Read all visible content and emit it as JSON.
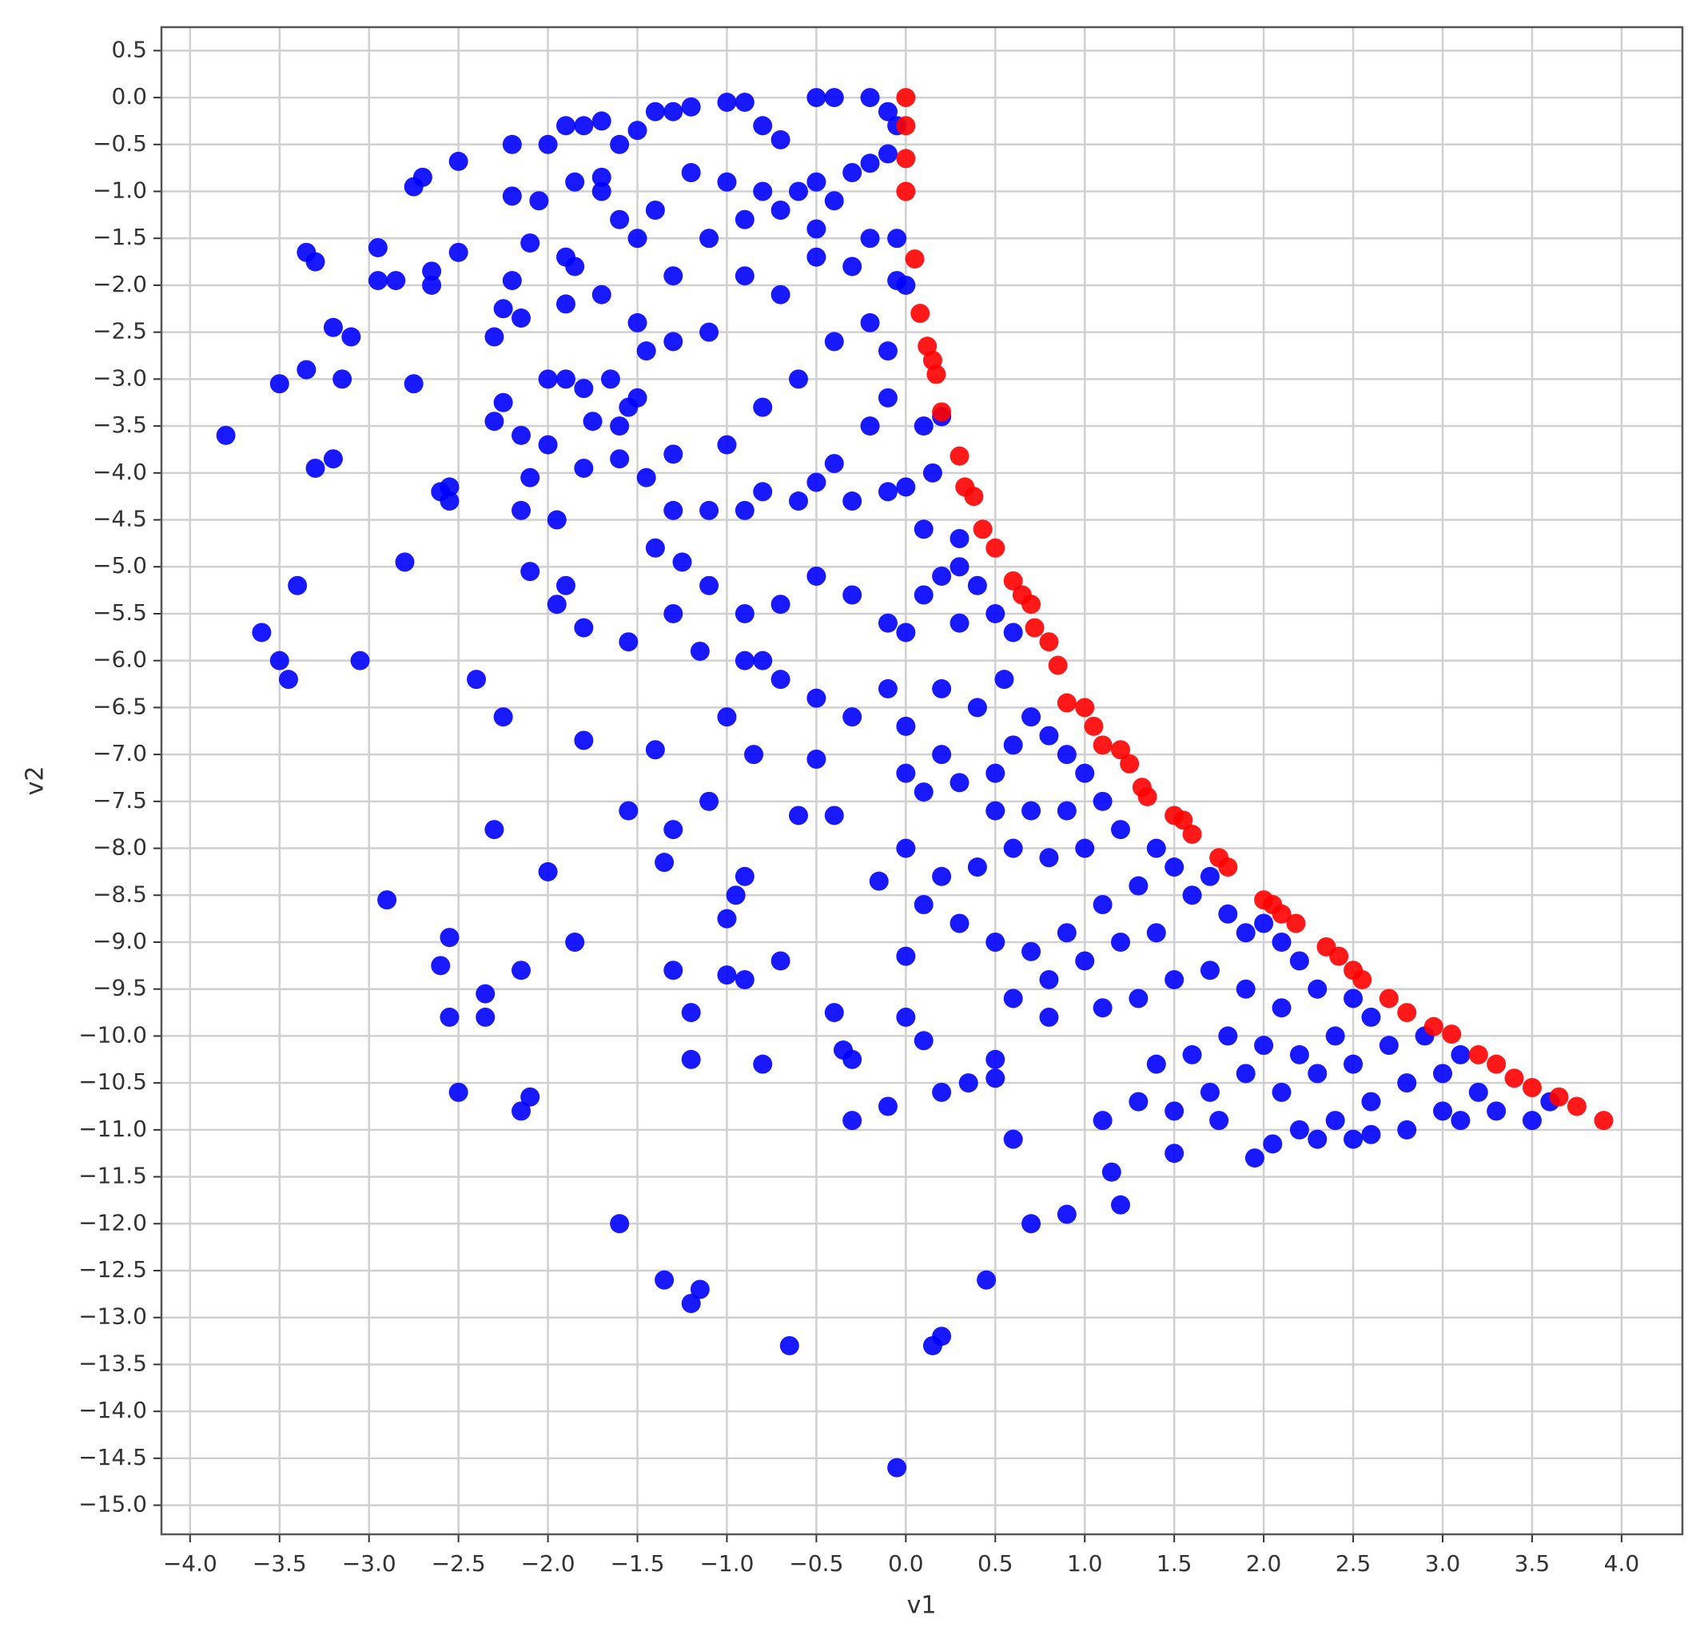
{
  "chart_data": {
    "type": "scatter",
    "xlabel": "v1",
    "ylabel": "v2",
    "grid": true,
    "xlim": [
      -4.16,
      4.34
    ],
    "ylim": [
      -15.31,
      0.75
    ],
    "xticks": [
      {
        "value": -4.0,
        "label": "−4.0"
      },
      {
        "value": -3.5,
        "label": "−3.5"
      },
      {
        "value": -3.0,
        "label": "−3.0"
      },
      {
        "value": -2.5,
        "label": "−2.5"
      },
      {
        "value": -2.0,
        "label": "−2.0"
      },
      {
        "value": -1.5,
        "label": "−1.5"
      },
      {
        "value": -1.0,
        "label": "−1.0"
      },
      {
        "value": -0.5,
        "label": "−0.5"
      },
      {
        "value": 0,
        "label": "0.0"
      },
      {
        "value": 0.5,
        "label": "0.5"
      },
      {
        "value": 1,
        "label": "1.0"
      },
      {
        "value": 1.5,
        "label": "1.5"
      },
      {
        "value": 2,
        "label": "2.0"
      },
      {
        "value": 2.5,
        "label": "2.5"
      },
      {
        "value": 3,
        "label": "3.0"
      },
      {
        "value": 3.5,
        "label": "3.5"
      },
      {
        "value": 4,
        "label": "4.0"
      }
    ],
    "yticks": [
      {
        "value": 0.5,
        "label": "0.5"
      },
      {
        "value": 0,
        "label": "0.0"
      },
      {
        "value": -0.5,
        "label": "−0.5"
      },
      {
        "value": -1.0,
        "label": "−1.0"
      },
      {
        "value": -1.5,
        "label": "−1.5"
      },
      {
        "value": -2.0,
        "label": "−2.0"
      },
      {
        "value": -2.5,
        "label": "−2.5"
      },
      {
        "value": -3.0,
        "label": "−3.0"
      },
      {
        "value": -3.5,
        "label": "−3.5"
      },
      {
        "value": -4.0,
        "label": "−4.0"
      },
      {
        "value": -4.5,
        "label": "−4.5"
      },
      {
        "value": -5.0,
        "label": "−5.0"
      },
      {
        "value": -5.5,
        "label": "−5.5"
      },
      {
        "value": -6.0,
        "label": "−6.0"
      },
      {
        "value": -6.5,
        "label": "−6.5"
      },
      {
        "value": -7.0,
        "label": "−7.0"
      },
      {
        "value": -7.5,
        "label": "−7.5"
      },
      {
        "value": -8.0,
        "label": "−8.0"
      },
      {
        "value": -8.5,
        "label": "−8.5"
      },
      {
        "value": -9.0,
        "label": "−9.0"
      },
      {
        "value": -9.5,
        "label": "−9.5"
      },
      {
        "value": -10.0,
        "label": "−10.0"
      },
      {
        "value": -10.5,
        "label": "−10.5"
      },
      {
        "value": -11.0,
        "label": "−11.0"
      },
      {
        "value": -11.5,
        "label": "−11.5"
      },
      {
        "value": -12.0,
        "label": "−12.0"
      },
      {
        "value": -12.5,
        "label": "−12.5"
      },
      {
        "value": -13.0,
        "label": "−13.0"
      },
      {
        "value": -13.5,
        "label": "−13.5"
      },
      {
        "value": -14.0,
        "label": "−14.0"
      },
      {
        "value": -14.5,
        "label": "−14.5"
      },
      {
        "value": -15.0,
        "label": "−15.0"
      }
    ],
    "series": [
      {
        "color": "#0000ff",
        "x": [
          -3.8,
          -3.6,
          -3.5,
          -3.45,
          -3.4,
          -3.5,
          -3.35,
          -3.35,
          -3.3,
          -3.2,
          -3.1,
          -3.15,
          -3.05,
          -3.3,
          -3.2,
          -2.95,
          -2.95,
          -2.85,
          -2.9,
          -2.8,
          -2.75,
          -2.75,
          -2.7,
          -2.65,
          -2.65,
          -2.6,
          -2.55,
          -2.55,
          -2.5,
          -2.5,
          -2.6,
          -2.55,
          -2.55,
          -2.5,
          -2.4,
          -2.35,
          -2.35,
          -2.3,
          -2.25,
          -2.3,
          -2.25,
          -2.3,
          -2.25,
          -2.2,
          -2.2,
          -2.2,
          -2.15,
          -2.15,
          -2.15,
          -2.1,
          -2.15,
          -2.1,
          -2.15,
          -2.1,
          -2.05,
          -2.1,
          -2.0,
          -2.0,
          -2.0,
          -2.0,
          -1.95,
          -1.95,
          -1.9,
          -1.9,
          -1.85,
          -1.85,
          -1.85,
          -1.8,
          -1.8,
          -1.8,
          -1.8,
          -1.75,
          -1.7,
          -1.65,
          -1.6,
          -1.6,
          -1.55,
          -1.55,
          -1.55,
          -1.5,
          -1.45,
          -1.45,
          -1.4,
          -1.35,
          -1.35,
          -1.3,
          -1.3,
          -1.3,
          -1.25,
          -1.2,
          -1.15,
          -1.2,
          -1.2,
          -1.15,
          -1.1,
          -1.0,
          -1.0,
          -0.95,
          -0.9,
          -0.9,
          -0.85,
          -0.8,
          -0.7,
          -0.65,
          -0.6,
          -0.5,
          -0.4,
          -0.4,
          -0.35,
          -0.3,
          -0.3,
          -0.1,
          -0.05,
          0.0,
          0.0,
          0.1,
          0.15,
          0.2,
          0.2,
          0.35,
          0.45,
          0.5,
          0.5,
          0.6,
          0.7,
          0.9,
          1.15,
          1.2,
          1.5,
          1.95,
          2.05,
          -1.9,
          -1.8,
          -1.7,
          -1.6,
          -1.5,
          -1.4,
          -1.3,
          -1.2,
          -1.0,
          -0.9,
          -0.8,
          -0.7,
          -0.5,
          -0.4,
          -0.2,
          -0.1,
          -0.05,
          -0.1,
          -0.2,
          -0.3,
          -0.5,
          -0.6,
          -0.8,
          -1.0,
          -1.2,
          -1.4,
          -1.6,
          -1.7,
          -1.5,
          -1.3,
          -1.1,
          -0.9,
          -0.7,
          -0.5,
          -0.4,
          -0.2,
          -0.05,
          -0.3,
          -0.5,
          -0.7,
          -0.9,
          -1.1,
          -1.3,
          -1.5,
          -1.7,
          -1.9,
          -1.9,
          -1.6,
          -1.3,
          -1.0,
          -0.8,
          -0.6,
          -0.4,
          -0.2,
          -0.1,
          0.0,
          -0.05,
          -0.1,
          -0.2,
          -0.4,
          -0.6,
          -0.9,
          -1.1,
          -1.3,
          -0.8,
          -0.5,
          -0.3,
          -0.1,
          0.0,
          0.1,
          0.15,
          0.2,
          -1.4,
          -1.1,
          -0.9,
          -0.7,
          -0.5,
          -0.3,
          -0.1,
          0.0,
          0.1,
          0.2,
          0.3,
          0.4,
          0.1,
          0.3,
          -0.9,
          -0.7,
          -0.5,
          -0.3,
          -0.1,
          0.0,
          0.2,
          0.4,
          0.55,
          0.6,
          0.5,
          0.3,
          -1.0,
          -0.8,
          0.0,
          0.1,
          0.2,
          0.3,
          0.5,
          0.6,
          0.7,
          0.8,
          0.9,
          0.5,
          0.7,
          0.9,
          1.0,
          1.1,
          1.2,
          1.0,
          0.8,
          0.6,
          0.4,
          0.2,
          0.0,
          -0.15,
          0.1,
          0.3,
          0.5,
          0.7,
          0.9,
          1.1,
          1.3,
          1.4,
          1.5,
          1.6,
          1.7,
          1.8,
          1.9,
          2.0,
          2.1,
          2.2,
          1.4,
          1.2,
          1.0,
          0.8,
          0.6,
          0.8,
          1.1,
          1.3,
          1.5,
          1.7,
          1.9,
          2.1,
          2.3,
          2.5,
          2.6,
          2.4,
          2.2,
          2.0,
          1.8,
          1.6,
          1.4,
          1.7,
          1.9,
          2.1,
          2.3,
          2.5,
          2.7,
          2.9,
          3.1,
          3.0,
          2.8,
          2.6,
          2.4,
          2.2,
          2.5,
          2.8,
          3.0,
          3.2,
          3.1,
          3.3,
          3.5,
          3.6,
          1.1,
          1.3,
          1.5,
          1.75,
          2.3,
          2.6
        ],
        "values": [
          -3.6,
          -5.7,
          -6.0,
          -6.2,
          -5.2,
          -3.05,
          -2.9,
          -1.65,
          -1.75,
          -2.45,
          -2.55,
          -3.0,
          -6.0,
          -3.95,
          -3.85,
          -1.6,
          -1.95,
          -1.95,
          -8.55,
          -4.95,
          -3.05,
          -0.95,
          -0.85,
          -2.0,
          -1.85,
          -4.2,
          -4.3,
          -4.15,
          -1.65,
          -0.68,
          -9.25,
          -8.95,
          -9.8,
          -10.6,
          -6.2,
          -9.55,
          -9.8,
          -7.8,
          -6.6,
          -3.45,
          -3.25,
          -2.55,
          -2.25,
          -1.95,
          -1.05,
          -0.5,
          -2.35,
          -3.6,
          -4.4,
          -5.05,
          -9.3,
          -10.65,
          -10.8,
          -4.05,
          -1.1,
          -1.55,
          -0.5,
          -3.0,
          -3.7,
          -8.25,
          -4.5,
          -5.4,
          -5.2,
          -2.2,
          -1.8,
          -0.9,
          -9.0,
          -6.85,
          -5.65,
          -3.1,
          -3.95,
          -3.45,
          -0.85,
          -3.0,
          -3.85,
          -12.0,
          -5.8,
          -7.6,
          -3.3,
          -3.2,
          -4.05,
          -2.7,
          -6.95,
          -12.6,
          -8.15,
          -9.3,
          -7.8,
          -5.5,
          -4.95,
          -12.85,
          -12.7,
          -9.75,
          -10.25,
          -5.9,
          -7.5,
          -8.75,
          -9.35,
          -8.5,
          -8.3,
          -9.4,
          -7.0,
          -10.3,
          -9.2,
          -13.3,
          -7.65,
          -7.05,
          -7.65,
          -9.75,
          -10.15,
          -10.25,
          -10.9,
          -10.75,
          -14.6,
          -9.15,
          -9.8,
          -10.05,
          -13.3,
          -13.2,
          -10.6,
          -10.5,
          -12.6,
          -10.25,
          -10.45,
          -11.1,
          -12.0,
          -11.9,
          -11.45,
          -11.8,
          -11.25,
          -11.3,
          -11.15,
          -0.3,
          -0.3,
          -0.25,
          -0.5,
          -0.35,
          -0.15,
          -0.15,
          -0.1,
          -0.05,
          -0.05,
          -0.3,
          -0.45,
          0.0,
          0.0,
          0.0,
          -0.15,
          -0.3,
          -0.6,
          -0.7,
          -0.8,
          -0.9,
          -1.0,
          -1.0,
          -0.9,
          -0.8,
          -1.2,
          -1.3,
          -1.0,
          -1.5,
          -1.9,
          -1.5,
          -1.3,
          -1.2,
          -1.4,
          -1.1,
          -1.5,
          -1.5,
          -1.8,
          -1.7,
          -2.1,
          -1.9,
          -2.5,
          -2.6,
          -2.4,
          -2.1,
          -1.7,
          -3.0,
          -3.5,
          -3.8,
          -3.7,
          -3.3,
          -3.0,
          -2.6,
          -2.4,
          -2.7,
          -2.0,
          -1.95,
          -3.2,
          -3.5,
          -3.9,
          -4.3,
          -4.4,
          -4.4,
          -4.4,
          -4.2,
          -4.1,
          -4.3,
          -4.2,
          -4.15,
          -3.5,
          -4.0,
          -3.4,
          -4.8,
          -5.2,
          -5.5,
          -5.4,
          -5.1,
          -5.3,
          -5.6,
          -5.7,
          -5.3,
          -5.1,
          -5.0,
          -5.2,
          -4.6,
          -4.7,
          -6.0,
          -6.2,
          -6.4,
          -6.6,
          -6.3,
          -6.7,
          -6.3,
          -6.5,
          -6.2,
          -5.7,
          -5.5,
          -5.6,
          -6.6,
          -6.0,
          -7.2,
          -7.4,
          -7.0,
          -7.3,
          -7.2,
          -6.9,
          -6.6,
          -6.8,
          -7.0,
          -7.6,
          -7.6,
          -7.6,
          -7.2,
          -7.5,
          -7.8,
          -8.0,
          -8.1,
          -8.0,
          -8.2,
          -8.3,
          -8.0,
          -8.35,
          -8.6,
          -8.8,
          -9.0,
          -9.1,
          -8.9,
          -8.6,
          -8.4,
          -8.0,
          -8.2,
          -8.5,
          -8.3,
          -8.7,
          -8.9,
          -8.8,
          -9.0,
          -9.2,
          -8.9,
          -9.0,
          -9.2,
          -9.4,
          -9.6,
          -9.8,
          -9.7,
          -9.6,
          -9.4,
          -9.3,
          -9.5,
          -9.7,
          -9.5,
          -9.6,
          -9.8,
          -10.0,
          -10.2,
          -10.1,
          -10.0,
          -10.2,
          -10.3,
          -10.6,
          -10.4,
          -10.6,
          -10.4,
          -10.3,
          -10.1,
          -10.0,
          -10.2,
          -10.4,
          -10.5,
          -10.7,
          -10.9,
          -11.0,
          -11.1,
          -11.0,
          -10.8,
          -10.6,
          -10.9,
          -10.8,
          -10.9,
          -10.7,
          -10.9,
          -10.7,
          -10.8,
          -10.9,
          -11.1,
          -11.05
        ]
      },
      {
        "color": "#ff0000",
        "x": [
          0,
          0,
          0,
          0,
          0.05,
          0.08,
          0.12,
          0.15,
          0.17,
          0.2,
          0.3,
          0.33,
          0.38,
          0.43,
          0.5,
          0.6,
          0.65,
          0.7,
          0.72,
          0.8,
          0.85,
          0.9,
          1.0,
          1.05,
          1.1,
          1.2,
          1.25,
          1.32,
          1.35,
          1.5,
          1.55,
          1.6,
          1.75,
          1.8,
          2.0,
          2.05,
          2.1,
          2.18,
          2.35,
          2.42,
          2.5,
          2.55,
          2.7,
          2.8,
          2.95,
          3.05,
          3.2,
          3.3,
          3.4,
          3.5,
          3.65,
          3.75,
          3.9
        ],
        "values": [
          0,
          -0.3,
          -0.65,
          -1.0,
          -1.72,
          -2.3,
          -2.65,
          -2.8,
          -2.95,
          -3.35,
          -3.82,
          -4.15,
          -4.25,
          -4.6,
          -4.8,
          -5.15,
          -5.3,
          -5.4,
          -5.65,
          -5.8,
          -6.05,
          -6.45,
          -6.5,
          -6.7,
          -6.9,
          -6.95,
          -7.1,
          -7.35,
          -7.45,
          -7.65,
          -7.7,
          -7.85,
          -8.1,
          -8.2,
          -8.55,
          -8.6,
          -8.7,
          -8.8,
          -9.05,
          -9.15,
          -9.3,
          -9.4,
          -9.6,
          -9.75,
          -9.9,
          -9.98,
          -10.2,
          -10.3,
          -10.45,
          -10.55,
          -10.65,
          -10.75,
          -10.9
        ]
      }
    ]
  }
}
